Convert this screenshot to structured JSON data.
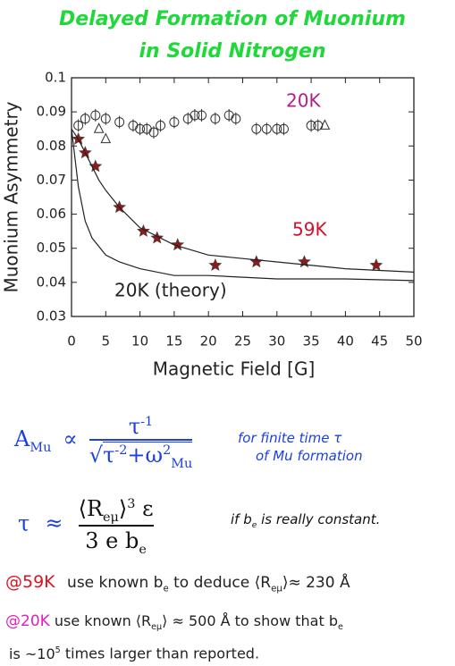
{
  "chart_data": {
    "type": "scatter",
    "title": "Delayed Formation of Muonium in Solid Nitrogen",
    "x_label": "Magnetic Field [G]",
    "y_label": "Muonium Asymmetry",
    "xlim": [
      0,
      50
    ],
    "xticks": [
      0,
      5,
      10,
      15,
      20,
      25,
      30,
      35,
      40,
      45,
      50
    ],
    "ylim": [
      0.03,
      0.1
    ],
    "yticks": [
      0.03,
      0.04,
      0.05,
      0.06,
      0.07,
      0.08,
      0.09,
      0.1
    ],
    "series": [
      {
        "name": "20K",
        "color": "#333333",
        "label_color": "#b0208a",
        "marker": "circle",
        "x": [
          1,
          2,
          3.5,
          5,
          7,
          9,
          10,
          11,
          12,
          13,
          15,
          17,
          18,
          19,
          21,
          23,
          24,
          27,
          28.5,
          30,
          31,
          35,
          36
        ],
        "values": [
          0.086,
          0.088,
          0.089,
          0.088,
          0.087,
          0.086,
          0.085,
          0.085,
          0.084,
          0.086,
          0.087,
          0.088,
          0.089,
          0.089,
          0.088,
          0.089,
          0.088,
          0.085,
          0.085,
          0.085,
          0.085,
          0.086,
          0.086
        ]
      },
      {
        "color": "#333333",
        "marker": "triangle",
        "x": [
          4,
          5,
          37
        ],
        "values": [
          0.085,
          0.082,
          0.086
        ]
      },
      {
        "name": "59K",
        "color": "#8b1a1a",
        "label_color": "#d01030",
        "marker": "star",
        "x": [
          1,
          2,
          3.5,
          7,
          10.5,
          12.5,
          15.5,
          21,
          27,
          34,
          44.5
        ],
        "values": [
          0.082,
          0.078,
          0.074,
          0.062,
          0.055,
          0.053,
          0.051,
          0.045,
          0.046,
          0.046,
          0.045
        ]
      },
      {
        "color": "#222222",
        "marker": "line",
        "x": [
          0,
          1,
          2,
          3,
          4,
          5,
          7,
          10,
          15,
          20,
          25,
          30,
          40,
          50
        ],
        "values": [
          0.085,
          0.082,
          0.078,
          0.074,
          0.07,
          0.067,
          0.062,
          0.056,
          0.051,
          0.048,
          0.047,
          0.046,
          0.044,
          0.043
        ]
      },
      {
        "name": "20K (theory)",
        "color": "#222222",
        "label_color": "#222222",
        "marker": "line",
        "x": [
          0,
          1,
          2,
          3,
          5,
          7,
          10,
          15,
          20,
          30,
          40,
          50
        ],
        "values": [
          0.085,
          0.068,
          0.058,
          0.053,
          0.048,
          0.046,
          0.044,
          0.042,
          0.042,
          0.041,
          0.041,
          0.0405
        ]
      }
    ]
  },
  "formula1": {
    "lhs": "A",
    "lhs_sub": "Mu",
    "rel": "∝",
    "num": "τ",
    "num_sup": "-1",
    "den": "τ",
    "den_sup": "-2",
    "plus": "+",
    "den2": "ω",
    "den2_sup": "2",
    "den2_sub": "Mu",
    "note1": "for finite time τ",
    "note2": "of Mu formation"
  },
  "formula2": {
    "lhs": "τ",
    "rel": "≈",
    "num": "⟨R",
    "num_sub": "eμ",
    "num_close": "⟩",
    "num_sup": "3",
    "num_eps": "ε",
    "den": "3 e b",
    "den_sub": "e",
    "note": "if b",
    "note_sub": "e",
    "note_rest": "is really constant."
  },
  "line59": {
    "tag": "@59K",
    "a": "use known b",
    "a_sub": "e",
    "b": "to deduce ⟨R",
    "b_sub": "eμ",
    "c": "⟩≈ 230 Å"
  },
  "line20": {
    "tag": "@20K",
    "a": "use known ⟨R",
    "a_sub": "eμ",
    "b": "⟩ ≈ 500 Å  to show that b",
    "b_sub": "e",
    "c": "is ~10",
    "c_sup": "5",
    "d": "times larger than reported."
  }
}
